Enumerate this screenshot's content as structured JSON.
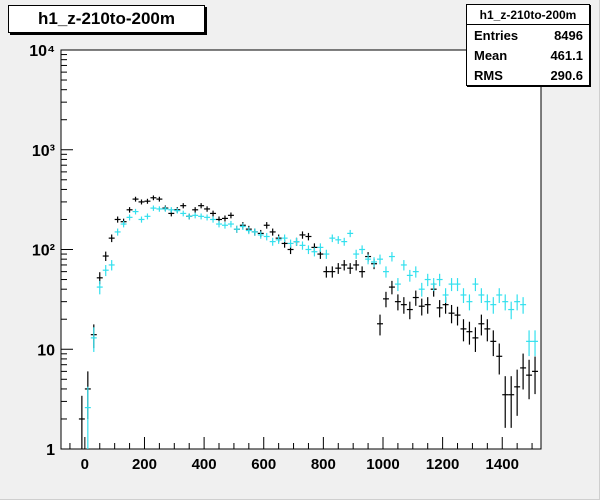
{
  "title": "h1_z-210to-200m",
  "stats": {
    "title": "h1_z-210to-200m",
    "rows": [
      {
        "label": "Entries",
        "value": "8496"
      },
      {
        "label": "Mean",
        "value": "461.1"
      },
      {
        "label": "RMS",
        "value": "290.6"
      }
    ]
  },
  "chart_data": {
    "type": "scatter",
    "title": "h1_z-210to-200m",
    "xlabel": "",
    "ylabel": "",
    "xlim": [
      -80,
      1530
    ],
    "ylim": [
      1,
      10000
    ],
    "yscale": "log",
    "grid": false,
    "x_ticks": [
      0,
      200,
      400,
      600,
      800,
      1000,
      1200,
      1400
    ],
    "x_tick_labels": [
      "0",
      "200",
      "400",
      "600",
      "800",
      "1000",
      "1200",
      "1400"
    ],
    "y_ticks": [
      1,
      10,
      100,
      1000,
      10000
    ],
    "y_tick_labels": [
      "1",
      "10",
      "10²",
      "10³",
      "10⁴"
    ],
    "bin_width": 20,
    "colors": {
      "series_black": "#000000",
      "series_cyan": "#33e0ee",
      "frame": "#000000",
      "plot_bg": "#ffffff"
    },
    "series": [
      {
        "color": "#000000",
        "x": [
          -10,
          10,
          30,
          50,
          70,
          90,
          110,
          130,
          150,
          170,
          190,
          210,
          230,
          250,
          270,
          290,
          310,
          330,
          350,
          370,
          390,
          410,
          430,
          450,
          470,
          490,
          510,
          530,
          550,
          570,
          590,
          610,
          630,
          650,
          670,
          690,
          710,
          730,
          750,
          770,
          790,
          810,
          830,
          850,
          870,
          890,
          910,
          930,
          950,
          970,
          990,
          1010,
          1030,
          1050,
          1070,
          1090,
          1110,
          1130,
          1150,
          1170,
          1190,
          1210,
          1230,
          1250,
          1270,
          1290,
          1310,
          1330,
          1350,
          1370,
          1390,
          1410,
          1430,
          1450,
          1470,
          1490,
          1510
        ],
        "values": [
          2,
          4,
          14,
          52,
          86,
          130,
          200,
          190,
          250,
          320,
          300,
          305,
          330,
          320,
          260,
          230,
          250,
          275,
          215,
          250,
          275,
          255,
          230,
          200,
          205,
          220,
          160,
          175,
          160,
          150,
          145,
          175,
          150,
          130,
          115,
          100,
          120,
          140,
          135,
          105,
          90,
          60,
          60,
          65,
          70,
          65,
          70,
          60,
          85,
          72,
          18,
          32,
          42,
          30,
          28,
          25,
          33,
          27,
          28,
          40,
          26,
          28,
          23,
          22,
          16,
          15,
          13,
          18,
          16,
          12,
          8.5,
          3.5,
          3.5,
          4.2,
          6.5,
          5.5,
          6
        ]
      },
      {
        "color": "#33e0ee",
        "x": [
          10,
          30,
          50,
          70,
          90,
          110,
          130,
          150,
          170,
          190,
          210,
          230,
          250,
          270,
          290,
          310,
          330,
          350,
          370,
          390,
          410,
          430,
          450,
          470,
          490,
          510,
          530,
          550,
          570,
          590,
          610,
          630,
          650,
          670,
          690,
          710,
          730,
          750,
          770,
          790,
          810,
          830,
          850,
          870,
          890,
          910,
          930,
          950,
          970,
          990,
          1010,
          1030,
          1050,
          1070,
          1090,
          1110,
          1130,
          1150,
          1170,
          1190,
          1210,
          1230,
          1250,
          1270,
          1290,
          1310,
          1330,
          1350,
          1370,
          1390,
          1410,
          1430,
          1450,
          1470,
          1490,
          1510
        ],
        "values": [
          2.6,
          13,
          42,
          62,
          70,
          150,
          180,
          210,
          240,
          200,
          215,
          260,
          255,
          255,
          250,
          245,
          230,
          215,
          220,
          215,
          210,
          200,
          180,
          175,
          180,
          160,
          170,
          155,
          150,
          140,
          135,
          120,
          125,
          130,
          115,
          120,
          110,
          100,
          95,
          105,
          90,
          130,
          125,
          120,
          145,
          90,
          100,
          80,
          75,
          80,
          60,
          85,
          45,
          70,
          55,
          60,
          40,
          50,
          45,
          50,
          35,
          45,
          45,
          35,
          30,
          45,
          35,
          30,
          28,
          35,
          30,
          25,
          30,
          28,
          12,
          12
        ]
      }
    ]
  }
}
